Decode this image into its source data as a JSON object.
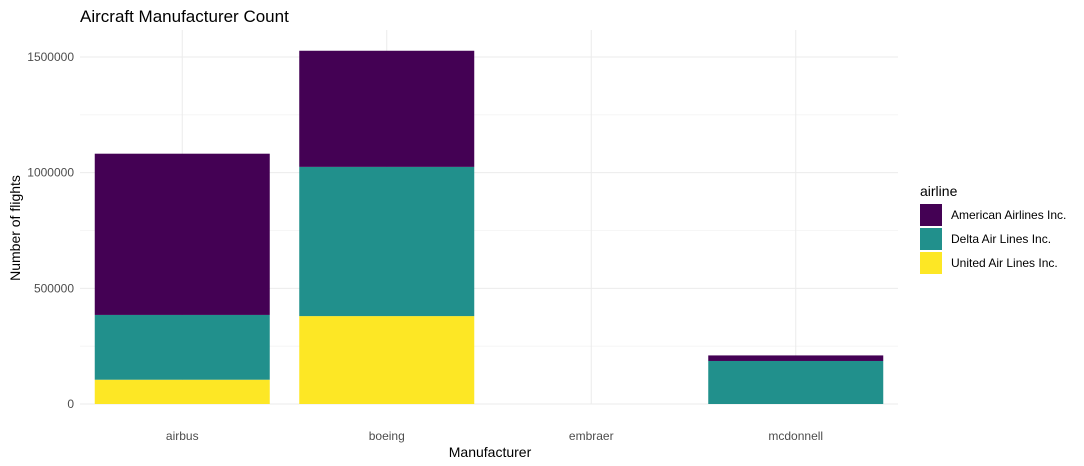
{
  "chart_data": {
    "type": "bar",
    "stacked": true,
    "title": "Aircraft Manufacturer Count",
    "xlabel": "Manufacturer",
    "ylabel": "Number of flights",
    "categories": [
      "airbus",
      "boeing",
      "embraer",
      "mcdonnell"
    ],
    "ylim": [
      0,
      1600000
    ],
    "yticks": [
      0,
      500000,
      1000000,
      1500000
    ],
    "ytick_labels": [
      "0",
      "500000",
      "1000000",
      "1500000"
    ],
    "grid": true,
    "legend": {
      "title": "airline",
      "position": "right"
    },
    "series": [
      {
        "name": "United Air Lines Inc.",
        "color": "#FDE725",
        "values": [
          105000,
          380000,
          0,
          0
        ]
      },
      {
        "name": "Delta Air Lines Inc.",
        "color": "#21908C",
        "values": [
          280000,
          645000,
          0,
          186000
        ]
      },
      {
        "name": "American Airlines Inc.",
        "color": "#440154",
        "values": [
          697000,
          502000,
          0,
          24000
        ]
      }
    ],
    "legend_order": [
      "American Airlines Inc.",
      "Delta Air Lines Inc.",
      "United Air Lines Inc."
    ]
  }
}
